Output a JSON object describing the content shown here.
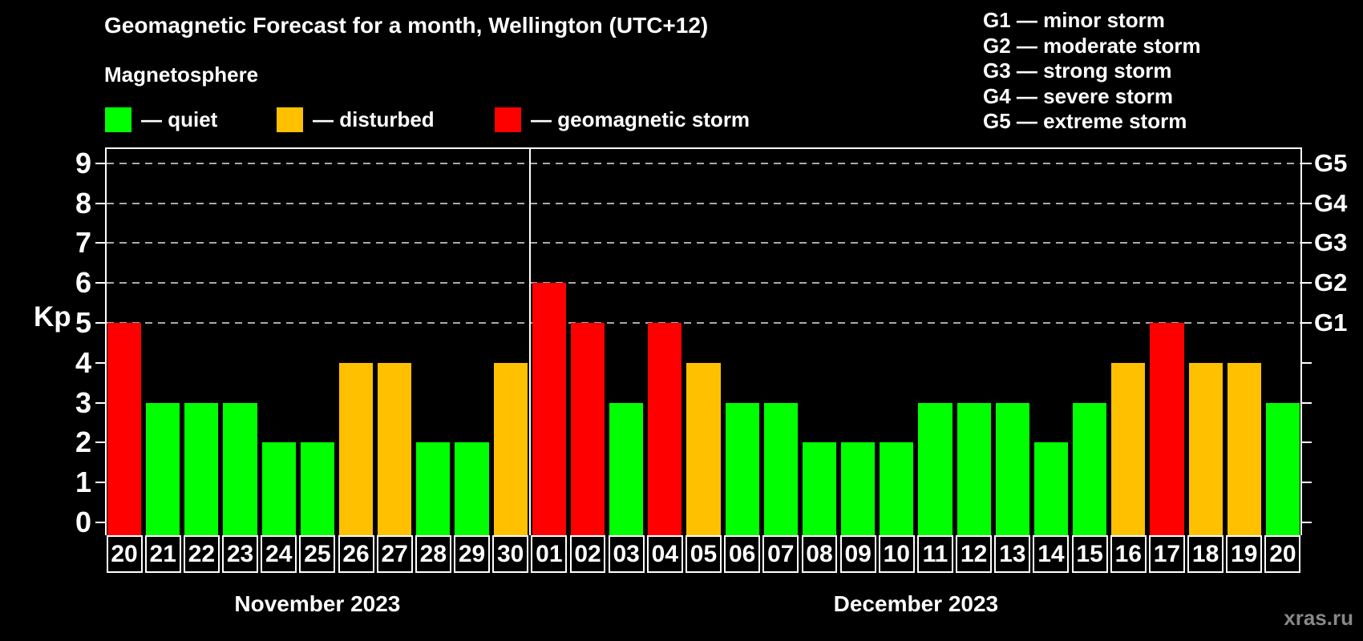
{
  "header": {
    "title": "Geomagnetic Forecast for a month, Wellington (UTC+12)",
    "subtitle": "Magnetosphere"
  },
  "status_legend": [
    {
      "status": "quiet",
      "color": "#00ff00",
      "label": "— quiet"
    },
    {
      "status": "disturbed",
      "color": "#ffc000",
      "label": "— disturbed"
    },
    {
      "status": "storm",
      "color": "#ff0000",
      "label": "— geomagnetic storm"
    }
  ],
  "storm_scale": [
    "G1 — minor storm",
    "G2 — moderate storm",
    "G3 — strong storm",
    "G4 — severe storm",
    "G5 — extreme storm"
  ],
  "chart_data": {
    "type": "bar",
    "title": "Geomagnetic Forecast for a month, Wellington (UTC+12)",
    "ylabel": "Kp",
    "ylim": [
      0,
      9.4
    ],
    "y_ticks": [
      "0",
      "1",
      "2",
      "3",
      "4",
      "5",
      "6",
      "7",
      "8",
      "9"
    ],
    "gridlines": [
      5,
      6,
      7,
      8,
      9
    ],
    "grid_style": "dashed",
    "legend_position": "top",
    "right_labels": [
      {
        "kp": 5,
        "label": "G1"
      },
      {
        "kp": 6,
        "label": "G2"
      },
      {
        "kp": 7,
        "label": "G3"
      },
      {
        "kp": 8,
        "label": "G4"
      },
      {
        "kp": 9,
        "label": "G5"
      }
    ],
    "colors": {
      "quiet": "#00ff00",
      "disturbed": "#ffc000",
      "storm": "#ff0000"
    },
    "months": [
      {
        "name": "November 2023",
        "days": [
          "20",
          "21",
          "22",
          "23",
          "24",
          "25",
          "26",
          "27",
          "28",
          "29",
          "30"
        ],
        "values": [
          5,
          3,
          3,
          3,
          2,
          2,
          4,
          4,
          2,
          2,
          4
        ],
        "statuses": [
          "storm",
          "quiet",
          "quiet",
          "quiet",
          "quiet",
          "quiet",
          "disturbed",
          "disturbed",
          "quiet",
          "quiet",
          "disturbed"
        ]
      },
      {
        "name": "December 2023",
        "days": [
          "01",
          "02",
          "03",
          "04",
          "05",
          "06",
          "07",
          "08",
          "09",
          "10",
          "11",
          "12",
          "13",
          "14",
          "15",
          "16",
          "17",
          "18",
          "19",
          "20"
        ],
        "values": [
          6,
          5,
          3,
          5,
          4,
          3,
          3,
          2,
          2,
          2,
          3,
          3,
          3,
          2,
          3,
          4,
          5,
          4,
          4,
          3
        ],
        "statuses": [
          "storm",
          "storm",
          "quiet",
          "storm",
          "disturbed",
          "quiet",
          "quiet",
          "quiet",
          "quiet",
          "quiet",
          "quiet",
          "quiet",
          "quiet",
          "quiet",
          "quiet",
          "disturbed",
          "storm",
          "disturbed",
          "disturbed",
          "quiet"
        ]
      }
    ]
  },
  "watermark": "xras.ru"
}
